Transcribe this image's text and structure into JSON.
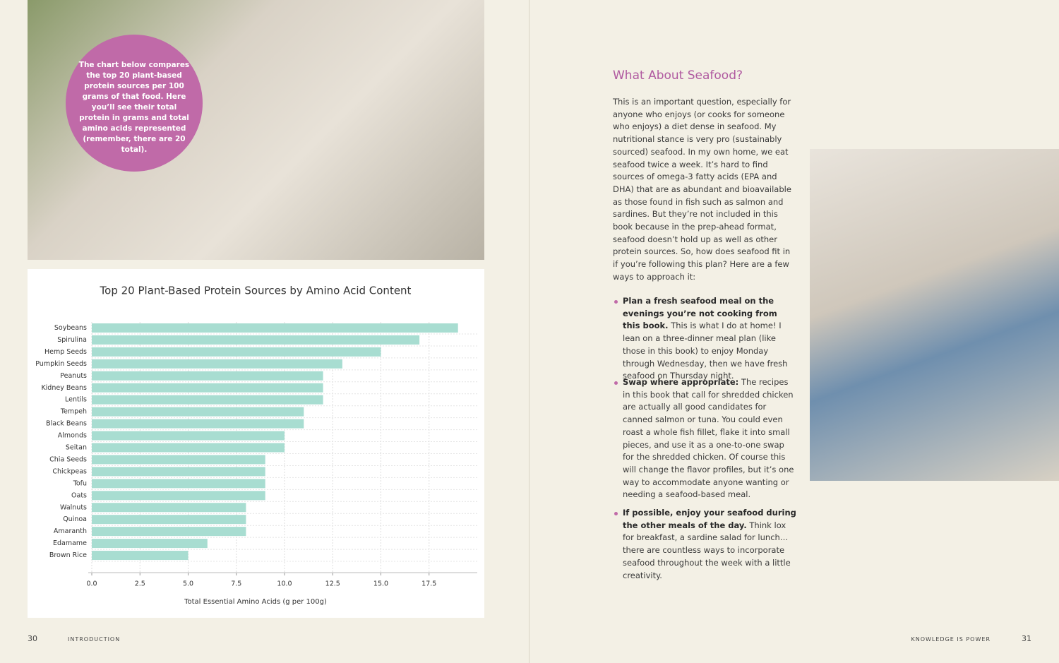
{
  "callout": "The chart below compares the top 20 plant-based protein sources per 100 grams of that food. Here you’ll see their total protein in grams and total amino acids represented (remember, there are 20 total).",
  "chart_data": {
    "type": "barh",
    "title": "Top 20 Plant-Based Protein Sources by Amino Acid Content",
    "x_label": "Total Essential Amino Acids (g per 100g)",
    "categories": [
      "Soybeans",
      "Spirulina",
      "Hemp Seeds",
      "Pumpkin Seeds",
      "Peanuts",
      "Kidney Beans",
      "Lentils",
      "Tempeh",
      "Black Beans",
      "Almonds",
      "Seitan",
      "Chia Seeds",
      "Chickpeas",
      "Tofu",
      "Oats",
      "Walnuts",
      "Quinoa",
      "Amaranth",
      "Edamame",
      "Brown Rice"
    ],
    "values": [
      19,
      17,
      15,
      13,
      12,
      12,
      12,
      11,
      11,
      10,
      10,
      9,
      9,
      9,
      9,
      8,
      8,
      8,
      6,
      5
    ],
    "color": "#a8ddd1",
    "xlim": [
      0,
      20
    ],
    "xticks": [
      {
        "value": 0,
        "label": "0.0"
      },
      2.5,
      {
        "value": 5,
        "label": "5.0"
      },
      7.5,
      {
        "value": 10,
        "label": "10.0"
      },
      12.5,
      {
        "value": 15,
        "label": "15.0"
      },
      17.5
    ],
    "grid": true
  },
  "article": {
    "heading": "What About Seafood?",
    "paragraph": "This is an important question, especially for anyone who enjoys (or cooks for someone who enjoys) a diet dense in seafood. My nutritional stance is very pro (sustainably sourced) seafood. In my own home, we eat seafood twice a week. It’s hard to find sources of omega-3 fatty acids (EPA and DHA) that are as abundant and bioavailable as those found in fish such as salmon and sardines. But they’re not included in this book because in the prep-ahead format, seafood doesn’t hold up as well as other protein sources. So, how does seafood fit in if you’re following this plan? Here are a few ways to approach it:",
    "bullets": [
      {
        "bold": "Plan a fresh seafood meal on the evenings you’re not cooking from this book.",
        "text": " This is what I do at home! I lean on a three-dinner meal plan (like those in this book) to enjoy Monday through Wednesday, then we have fresh seafood on Thursday night."
      },
      {
        "bold": "Swap where appropriate:",
        "text": " The recipes in this book that call for shredded chicken are actually all good candidates for canned salmon or tuna. You could even roast a whole fish fillet, flake it into small pieces, and use it as a one-to-one swap for the shredded chicken. Of course this will change the flavor profiles, but it’s one way to accommodate anyone wanting or needing a seafood-based meal."
      },
      {
        "bold": "If possible, enjoy your seafood during the other meals of the day.",
        "text": " Think lox for breakfast, a sardine salad for lunch…there are countless ways to incorporate seafood throughout the week with a little creativity."
      }
    ]
  },
  "footer": {
    "left_page": "30",
    "left_section": "INTRODUCTION",
    "right_section": "KNOWLEDGE IS POWER",
    "right_page": "31"
  }
}
